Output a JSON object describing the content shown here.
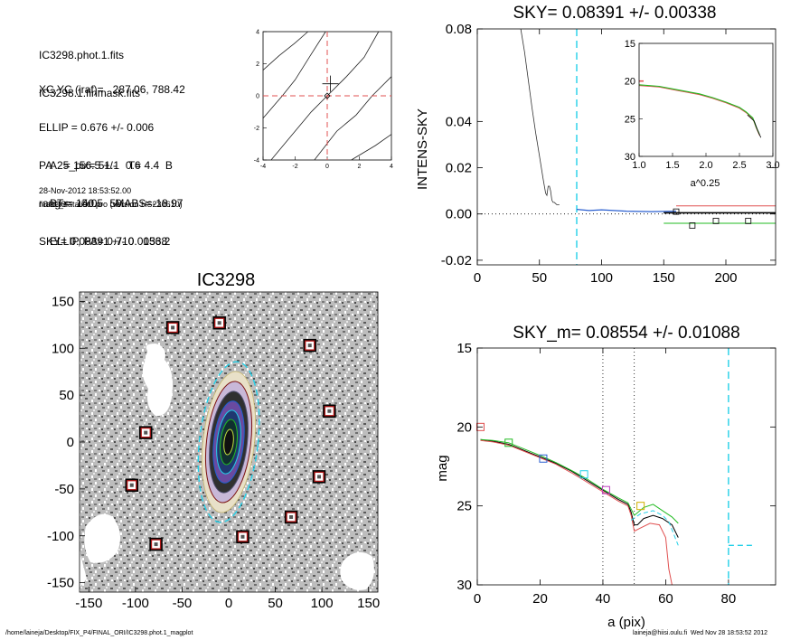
{
  "info": {
    "lines_a": [
      "IC3298.phot.1.fits",
      "IC3298.1.finmask.fits"
    ],
    "lines_b": [
      "XC,YC (iraf)=   287.06, 788.42",
      "ELLIP = 0.676 +/- 0.006",
      "PA    = 156.5 +/-   0.6",
      "range=   40.-   50.",
      "SKY= 0.08391 +/- 0.00338"
    ],
    "lines_c": [
      "A25_pix= 51.1   T= 4.4  B",
      "BT=  15.05    MABS=-18.97",
      "ELLIP, PA= 0.710   156.2"
    ],
    "date": "28-Nov-2012 18:53:52.00",
    "program": "make_datalist0.pro (version HS230610)"
  },
  "footer": {
    "path": "/home/laineja/Desktop/FIX_P4/FINAL_ORI/IC3298.phot.1_magplot",
    "user": "laineja@hiisi.oulu.fi  Wed Nov 28 18:53:52 2012"
  },
  "colors": {
    "red": "#e05050",
    "green": "#22bb22",
    "blue": "#2a5fd0",
    "cyan": "#22d0e8",
    "pink": "#f08080"
  },
  "chart_data": [
    {
      "id": "centering",
      "type": "line",
      "xlim": [
        -4,
        4
      ],
      "ylim": [
        -4,
        4
      ],
      "xticks": [
        "-4",
        "-2",
        "0",
        "2",
        "4"
      ],
      "yticks": [
        "-4",
        "-2",
        "0",
        "2",
        "4"
      ],
      "contours": [
        [
          [
            -4,
            1.6
          ],
          [
            -3,
            2.5
          ],
          [
            -2,
            3.3
          ],
          [
            -1.2,
            4
          ]
        ],
        [
          [
            -4,
            -1.4
          ],
          [
            -2.8,
            0.0
          ],
          [
            -2,
            1.0
          ],
          [
            -1,
            2.6
          ],
          [
            -0.1,
            4
          ]
        ],
        [
          [
            -3.5,
            -4
          ],
          [
            -2.5,
            -2.8
          ],
          [
            -1,
            -1.0
          ],
          [
            0,
            0.0
          ],
          [
            1.2,
            1.2
          ],
          [
            2.3,
            2.4
          ],
          [
            3.2,
            4
          ]
        ],
        [
          [
            -0.8,
            -4
          ],
          [
            0.6,
            -2.2
          ],
          [
            1.8,
            -1.2
          ],
          [
            2.8,
            0.0
          ],
          [
            4,
            1.2
          ]
        ],
        [
          [
            1.5,
            -4
          ],
          [
            3,
            -3.1
          ],
          [
            4,
            -2.4
          ]
        ]
      ],
      "center": [
        0,
        0
      ],
      "cross": [
        0.2,
        0.3
      ]
    },
    {
      "id": "image",
      "type": "scatter",
      "title": "IC3298",
      "xlim": [
        -160,
        160
      ],
      "ylim": [
        -160,
        160
      ],
      "xticks": [
        -150,
        -100,
        -50,
        0,
        50,
        100,
        150
      ],
      "yticks": [
        -150,
        -100,
        -50,
        0,
        50,
        100,
        150
      ],
      "masked_stars": [
        [
          -60,
          122
        ],
        [
          -10,
          127
        ],
        [
          87,
          103
        ],
        [
          108,
          33
        ],
        [
          -89,
          10
        ],
        [
          97,
          -37
        ],
        [
          -104,
          -46
        ],
        [
          67,
          -80
        ],
        [
          15,
          -101
        ],
        [
          -78,
          -109
        ]
      ],
      "galaxy": {
        "center": [
          0,
          0
        ],
        "a": 76,
        "pa": 156.5,
        "ellip": 0.676
      }
    },
    {
      "id": "sky",
      "type": "line",
      "title": "SKY= 0.08391 +/- 0.00338",
      "xlabel": "",
      "ylabel": "INTENS-SKY",
      "xlim": [
        0,
        240
      ],
      "ylim": [
        -0.022,
        0.08
      ],
      "xticks": [
        0,
        50,
        100,
        150,
        200
      ],
      "yticks": [
        "-0.02",
        "0.00",
        "0.02",
        "0.04",
        "0.08"
      ],
      "ytick_values": [
        -0.02,
        0,
        0.02,
        0.04,
        0.08
      ],
      "profile": [
        [
          35,
          0.08
        ],
        [
          38,
          0.07
        ],
        [
          41,
          0.058
        ],
        [
          44,
          0.046
        ],
        [
          47,
          0.035
        ],
        [
          50,
          0.025
        ],
        [
          53,
          0.015
        ],
        [
          55,
          0.009
        ],
        [
          56,
          0.008
        ],
        [
          57,
          0.012
        ],
        [
          58,
          0.012
        ],
        [
          59,
          0.01
        ],
        [
          60,
          0.006
        ],
        [
          61,
          0.005
        ],
        [
          62,
          0.005
        ],
        [
          64,
          0.004
        ],
        [
          66,
          0.004
        ]
      ],
      "cyan_line": 80,
      "red_level": 0.0035,
      "green_level": -0.004,
      "blue_segment": [
        [
          80,
          0.002
        ],
        [
          90,
          0.0015
        ],
        [
          100,
          0.0018
        ],
        [
          120,
          0.0012
        ],
        [
          140,
          0.001
        ],
        [
          160,
          0.0012
        ]
      ],
      "squares": [
        [
          160,
          0.001
        ],
        [
          173,
          -0.005
        ],
        [
          192,
          -0.003
        ],
        [
          218,
          -0.003
        ]
      ],
      "inset": {
        "xlabel": "a^0.25",
        "xlim": [
          1.0,
          3.0
        ],
        "ylim": [
          15,
          30
        ],
        "xticks": [
          "1.0",
          "1.5",
          "2.0",
          "2.5",
          "3.0"
        ],
        "xtick_values": [
          1.0,
          1.5,
          2.0,
          2.5,
          3.0
        ],
        "yticks": [
          15,
          20,
          25,
          30
        ],
        "profile": [
          [
            1.0,
            20.6
          ],
          [
            1.3,
            20.8
          ],
          [
            1.6,
            21.3
          ],
          [
            1.9,
            21.8
          ],
          [
            2.1,
            22.3
          ],
          [
            2.3,
            22.9
          ],
          [
            2.5,
            23.6
          ],
          [
            2.6,
            24.2
          ],
          [
            2.7,
            25.0
          ],
          [
            2.75,
            26.2
          ],
          [
            2.8,
            27.2
          ]
        ]
      }
    },
    {
      "id": "mag",
      "type": "line",
      "title": "SKY_m=  0.08554 +/- 0.01088",
      "xlabel": "a (pix)",
      "ylabel": "mag",
      "xlim": [
        0,
        95
      ],
      "ylim": [
        15,
        30
      ],
      "xticks": [
        0,
        20,
        40,
        60,
        80
      ],
      "yticks": [
        15,
        20,
        25,
        30
      ],
      "series": [
        {
          "color": "#000000",
          "points": [
            [
              1,
              20.8
            ],
            [
              5,
              20.9
            ],
            [
              10,
              21.1
            ],
            [
              15,
              21.5
            ],
            [
              20,
              21.9
            ],
            [
              25,
              22.3
            ],
            [
              30,
              22.8
            ],
            [
              35,
              23.4
            ],
            [
              40,
              24.0
            ],
            [
              45,
              24.6
            ],
            [
              48,
              24.9
            ],
            [
              49,
              25.4
            ],
            [
              50,
              26.2
            ],
            [
              51,
              26.2
            ],
            [
              53,
              25.8
            ],
            [
              56,
              25.6
            ],
            [
              59,
              25.8
            ],
            [
              62,
              26.2
            ],
            [
              64,
              27.0
            ]
          ]
        },
        {
          "color": "#22bb22",
          "points": [
            [
              1,
              20.8
            ],
            [
              5,
              20.85
            ],
            [
              10,
              21.0
            ],
            [
              15,
              21.4
            ],
            [
              20,
              21.8
            ],
            [
              25,
              22.25
            ],
            [
              30,
              22.75
            ],
            [
              35,
              23.3
            ],
            [
              40,
              23.95
            ],
            [
              45,
              24.5
            ],
            [
              48,
              24.8
            ],
            [
              49,
              25.2
            ],
            [
              50,
              25.6
            ],
            [
              53,
              25.1
            ],
            [
              56,
              24.9
            ],
            [
              59,
              25.3
            ],
            [
              62,
              25.7
            ],
            [
              64,
              26.1
            ]
          ]
        },
        {
          "color": "#e05050",
          "points": [
            [
              1,
              20.85
            ],
            [
              5,
              20.95
            ],
            [
              10,
              21.15
            ],
            [
              15,
              21.55
            ],
            [
              20,
              21.95
            ],
            [
              25,
              22.35
            ],
            [
              30,
              22.9
            ],
            [
              35,
              23.5
            ],
            [
              40,
              24.1
            ],
            [
              45,
              24.7
            ],
            [
              48,
              25.0
            ],
            [
              49,
              25.6
            ],
            [
              50,
              26.6
            ],
            [
              52,
              26.4
            ],
            [
              55,
              26.1
            ],
            [
              58,
              26.2
            ],
            [
              60,
              27.0
            ],
            [
              61,
              29.0
            ],
            [
              62,
              30
            ]
          ]
        },
        {
          "color": "#22d0e8",
          "points": [
            [
              49,
              25.9
            ],
            [
              52,
              25.5
            ],
            [
              56,
              25.3
            ],
            [
              59,
              25.6
            ],
            [
              61,
              26.0
            ],
            [
              63,
              27.0
            ],
            [
              64,
              27.5
            ]
          ]
        }
      ],
      "squares": [
        {
          "color": "#e05050",
          "x": 1,
          "y": 20.0
        },
        {
          "color": "#22bb22",
          "x": 10,
          "y": 21.0
        },
        {
          "color": "#2a5fd0",
          "x": 21,
          "y": 22.0
        },
        {
          "color": "#22d0e8",
          "x": 34,
          "y": 23.0
        },
        {
          "color": "#c040c0",
          "x": 41,
          "y": 24.0
        },
        {
          "color": "#d0b000",
          "x": 52,
          "y": 25.0
        }
      ],
      "vlines_dotted": [
        40,
        50
      ],
      "vline_dashed": 80,
      "sky_level": 27.5
    }
  ]
}
